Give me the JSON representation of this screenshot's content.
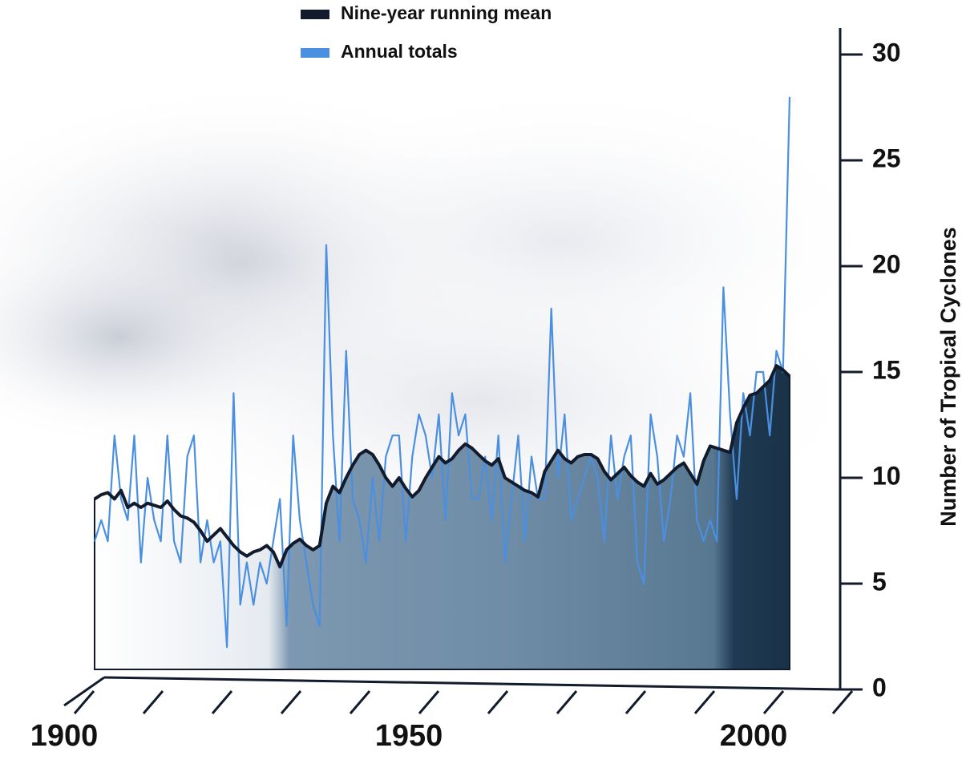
{
  "chart_data": {
    "type": "line",
    "y_label": "Number of Tropical Cyclones",
    "x": [
      1900,
      1901,
      1902,
      1903,
      1904,
      1905,
      1906,
      1907,
      1908,
      1909,
      1910,
      1911,
      1912,
      1913,
      1914,
      1915,
      1916,
      1917,
      1918,
      1919,
      1920,
      1921,
      1922,
      1923,
      1924,
      1925,
      1926,
      1927,
      1928,
      1929,
      1930,
      1931,
      1932,
      1933,
      1934,
      1935,
      1936,
      1937,
      1938,
      1939,
      1940,
      1941,
      1942,
      1943,
      1944,
      1945,
      1946,
      1947,
      1948,
      1949,
      1950,
      1951,
      1952,
      1953,
      1954,
      1955,
      1956,
      1957,
      1958,
      1959,
      1960,
      1961,
      1962,
      1963,
      1964,
      1965,
      1966,
      1967,
      1968,
      1969,
      1970,
      1971,
      1972,
      1973,
      1974,
      1975,
      1976,
      1977,
      1978,
      1979,
      1980,
      1981,
      1982,
      1983,
      1984,
      1985,
      1986,
      1987,
      1988,
      1989,
      1990,
      1991,
      1992,
      1993,
      1994,
      1995,
      1996,
      1997,
      1998,
      1999,
      2000,
      2001,
      2002,
      2003,
      2004,
      2005
    ],
    "series": [
      {
        "name": "Nine-year running mean",
        "color": "#111b2c",
        "values": [
          9,
          9.2,
          9.3,
          9,
          9.4,
          8.6,
          8.8,
          8.6,
          8.8,
          8.7,
          8.6,
          8.9,
          8.5,
          8.2,
          8.1,
          7.9,
          7.5,
          7,
          7.3,
          7.6,
          7.2,
          6.8,
          6.5,
          6.3,
          6.5,
          6.6,
          6.8,
          6.5,
          5.8,
          6.6,
          6.9,
          7.1,
          6.8,
          6.6,
          6.8,
          8.8,
          9.6,
          9.3,
          10,
          10.6,
          11.1,
          11.3,
          11.1,
          10.6,
          10,
          9.6,
          10,
          9.5,
          9.1,
          9.4,
          10,
          10.5,
          11,
          10.7,
          10.9,
          11.3,
          11.6,
          11.4,
          11.1,
          10.8,
          10.6,
          10.9,
          10,
          9.8,
          9.6,
          9.4,
          9.3,
          9.1,
          10.3,
          10.8,
          11.3,
          10.9,
          10.7,
          11,
          11.1,
          11.1,
          10.9,
          10.3,
          9.9,
          10.2,
          10.5,
          10.1,
          9.8,
          9.6,
          10.2,
          9.7,
          9.9,
          10.2,
          10.5,
          10.7,
          10.2,
          9.7,
          10.8,
          11.5,
          11.4,
          11.3,
          11.2,
          12.6,
          13.3,
          13.9,
          14,
          14.3,
          14.6,
          15.3,
          15.1,
          14.8
        ]
      },
      {
        "name": "Annual totals",
        "color": "#4a8fe0",
        "values": [
          7,
          8,
          7,
          12,
          9,
          8,
          12,
          6,
          10,
          8,
          7,
          12,
          7,
          6,
          11,
          12,
          6,
          8,
          6,
          7,
          2,
          14,
          4,
          6,
          4,
          6,
          5,
          7,
          9,
          3,
          12,
          8,
          6,
          4,
          3,
          21,
          12,
          7,
          16,
          9,
          8,
          6,
          10,
          7,
          11,
          12,
          12,
          7,
          11,
          13,
          12,
          10,
          13,
          8,
          14,
          12,
          13,
          9,
          9,
          11,
          8,
          12,
          6,
          9,
          12,
          7,
          11,
          9,
          9,
          18,
          10,
          13,
          8,
          9,
          10,
          11,
          10,
          7,
          12,
          9,
          11,
          12,
          6,
          5,
          13,
          11,
          7,
          9,
          12,
          11,
          14,
          8,
          7,
          8,
          7,
          19,
          13,
          9,
          14,
          12,
          15,
          15,
          12,
          16,
          15,
          28
        ]
      }
    ],
    "xlim": [
      1900,
      2005
    ],
    "xticks": [
      {
        "value": 1900,
        "label": "1900"
      },
      {
        "value": 1910,
        "label": null
      },
      {
        "value": 1920,
        "label": null
      },
      {
        "value": 1930,
        "label": null
      },
      {
        "value": 1940,
        "label": null
      },
      {
        "value": 1950,
        "label": "1950"
      },
      {
        "value": 1960,
        "label": null
      },
      {
        "value": 1970,
        "label": null
      },
      {
        "value": 1980,
        "label": null
      },
      {
        "value": 1990,
        "label": null
      },
      {
        "value": 2000,
        "label": "2000"
      },
      {
        "value": 2010,
        "label": null
      }
    ],
    "ylim": [
      0,
      30
    ],
    "yticks": [
      0,
      5,
      10,
      15,
      20,
      25,
      30
    ],
    "legend": "top"
  }
}
